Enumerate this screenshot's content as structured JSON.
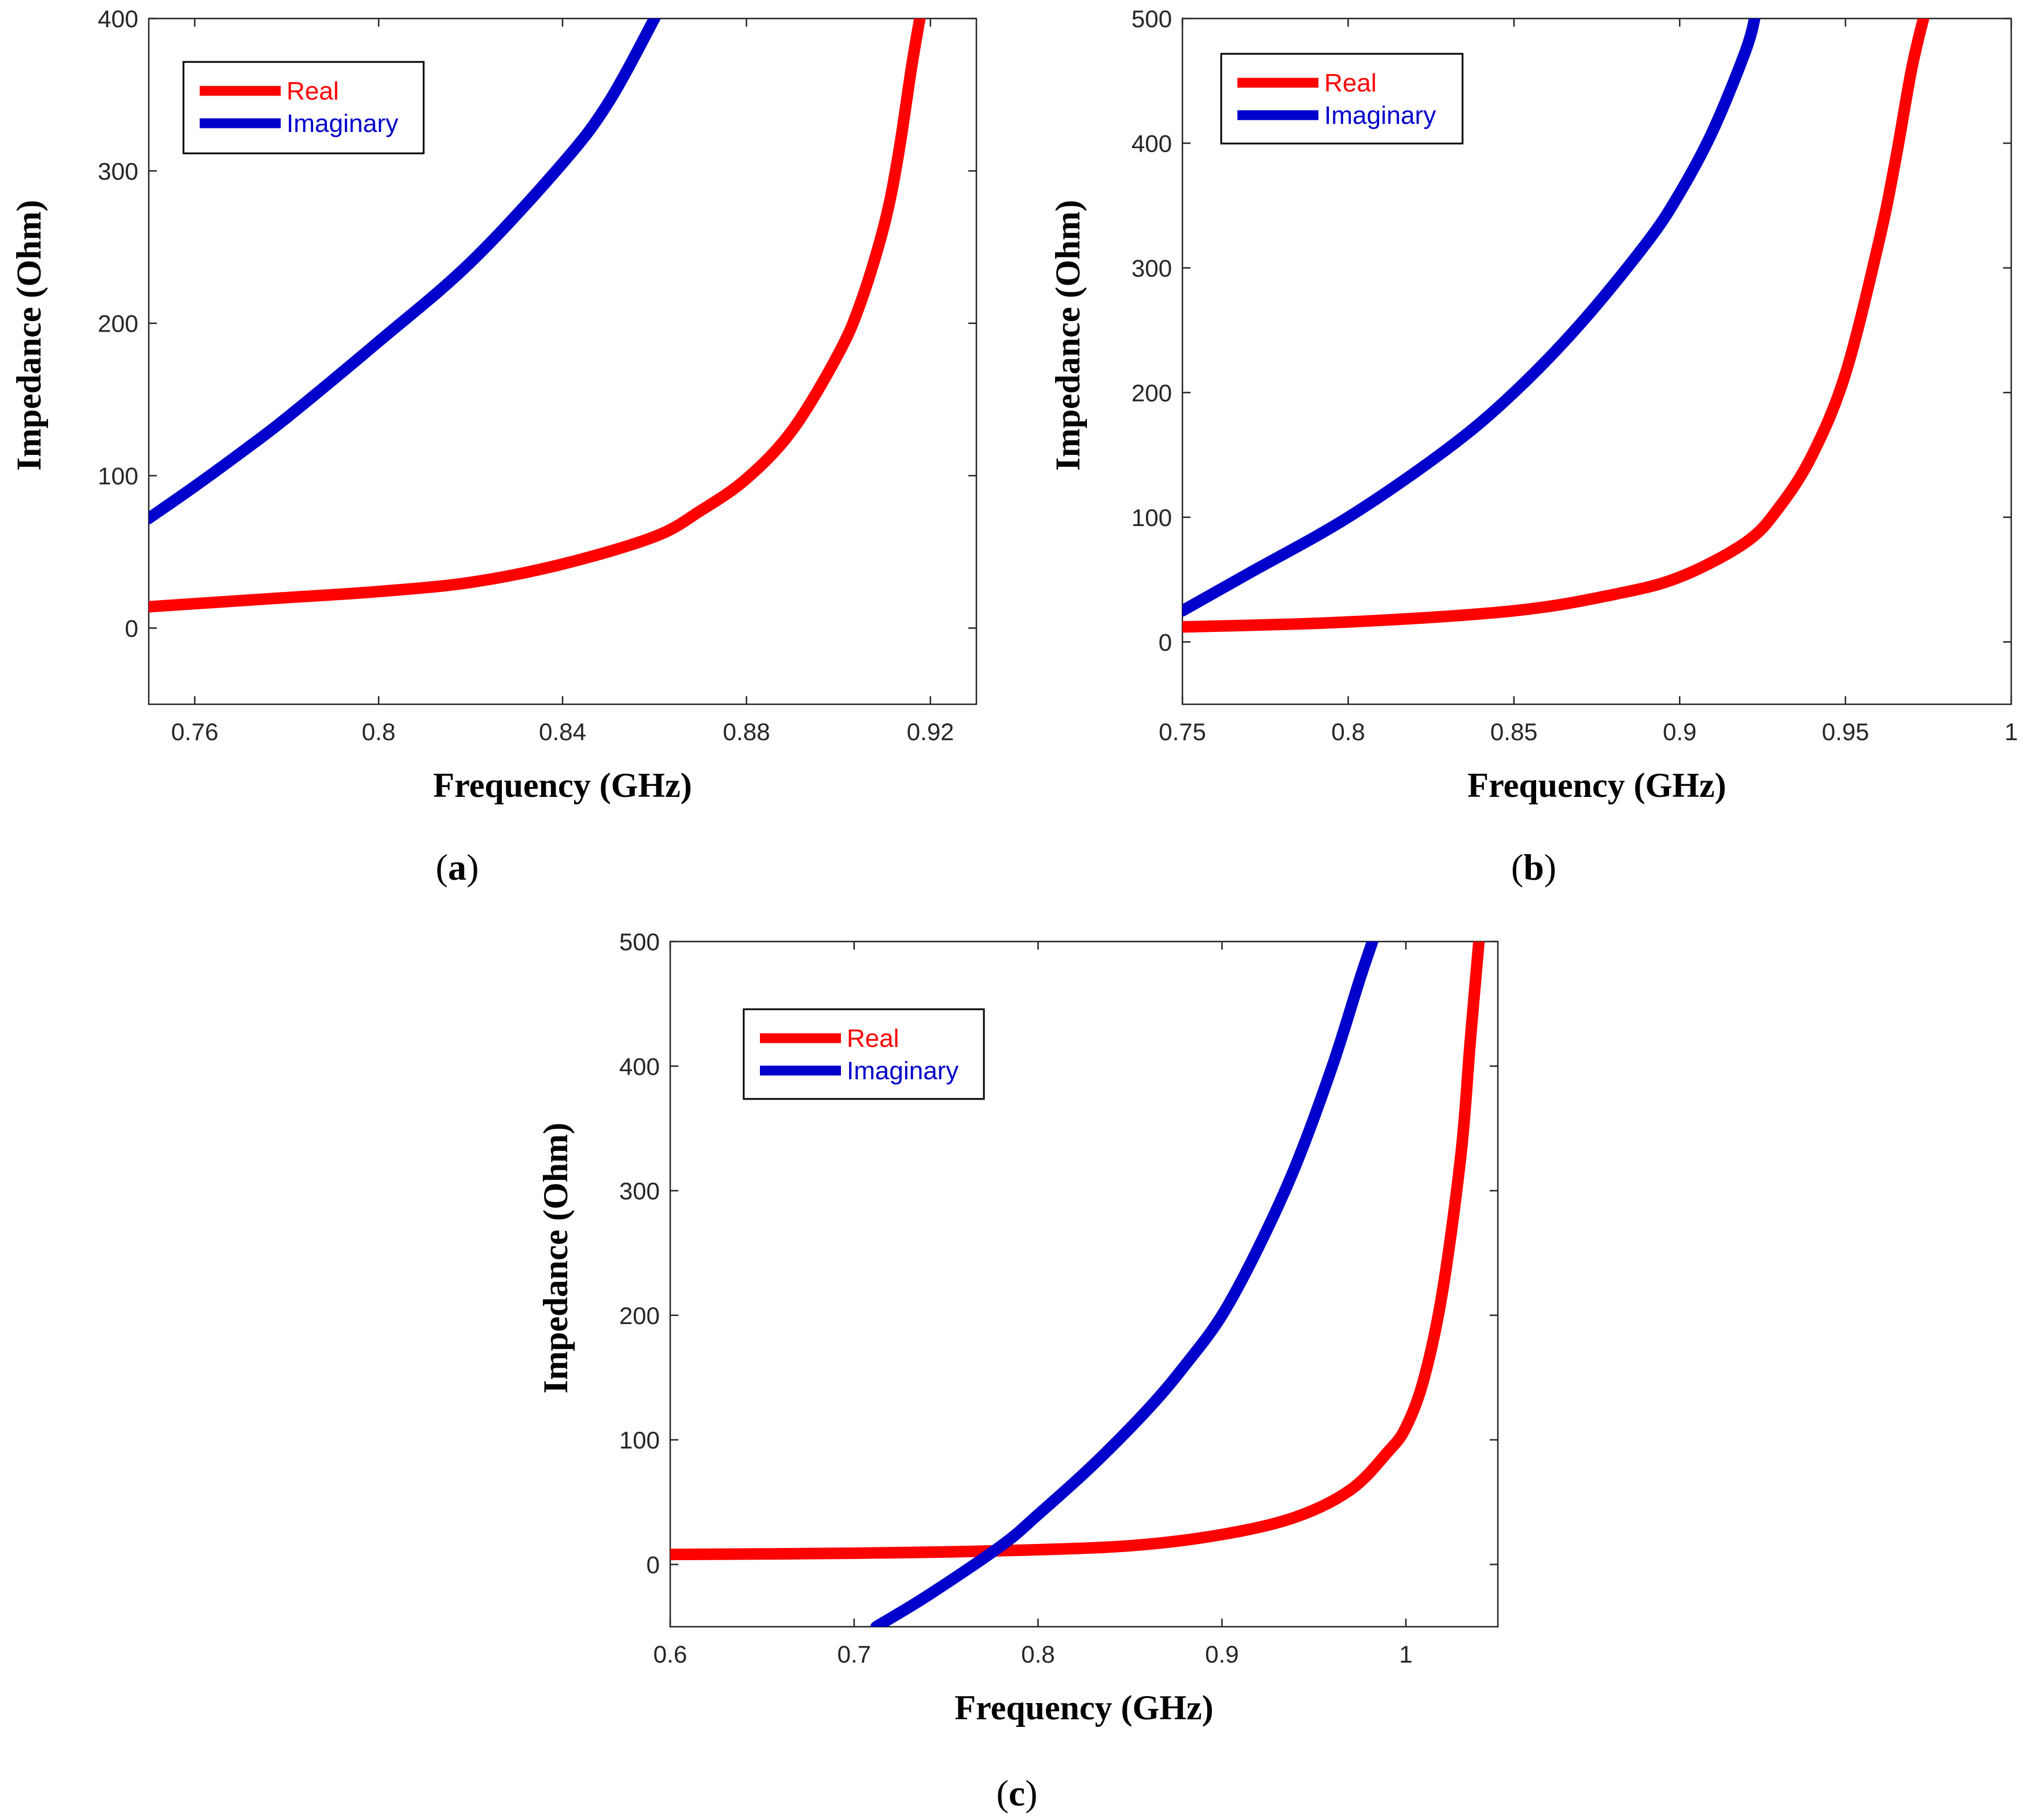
{
  "colors": {
    "real": "#ff0000",
    "imaginary": "#0000cc",
    "axis": "#262626",
    "grid": "#c8c8c8"
  },
  "chart_data": [
    {
      "type": "line",
      "caption": "a",
      "xlabel": "Frequency (GHz)",
      "ylabel": "Impedance (Ohm)",
      "xlim": [
        0.75,
        0.93
      ],
      "ylim": [
        -50,
        400
      ],
      "xticks": [
        0.76,
        0.8,
        0.84,
        0.88,
        0.92
      ],
      "xtick_labels": [
        "0.76",
        "0.8",
        "0.84",
        "0.88",
        "0.92"
      ],
      "yticks": [
        0,
        100,
        200,
        300,
        400
      ],
      "ytick_labels": [
        "0",
        "100",
        "200",
        "300",
        "400"
      ],
      "legend": "top-left",
      "series": [
        {
          "name": "Real",
          "color": "#ff0000",
          "x": [
            0.75,
            0.76,
            0.78,
            0.8,
            0.82,
            0.84,
            0.86,
            0.87,
            0.88,
            0.89,
            0.9,
            0.905,
            0.91,
            0.913,
            0.916,
            0.918
          ],
          "y": [
            14,
            16,
            20,
            24,
            30,
            42,
            60,
            77,
            98,
            130,
            180,
            215,
            265,
            310,
            370,
            405
          ]
        },
        {
          "name": "Imaginary",
          "color": "#0000cc",
          "x": [
            0.75,
            0.76,
            0.77,
            0.78,
            0.8,
            0.82,
            0.84,
            0.85,
            0.86
          ],
          "y": [
            72,
            93,
            115,
            138,
            188,
            240,
            305,
            345,
            400
          ]
        }
      ]
    },
    {
      "type": "line",
      "caption": "b",
      "xlabel": "Frequency (GHz)",
      "ylabel": "Impedance (Ohm)",
      "xlim": [
        0.75,
        1.0
      ],
      "ylim": [
        -50,
        500
      ],
      "xticks": [
        0.75,
        0.8,
        0.85,
        0.9,
        0.95,
        1.0
      ],
      "xtick_labels": [
        "0.75",
        "0.8",
        "0.85",
        "0.9",
        "0.95",
        "1"
      ],
      "yticks": [
        0,
        100,
        200,
        300,
        400,
        500
      ],
      "ytick_labels": [
        "0",
        "100",
        "200",
        "300",
        "400",
        "500"
      ],
      "legend": "top-left",
      "series": [
        {
          "name": "Real",
          "color": "#ff0000",
          "x": [
            0.75,
            0.8,
            0.85,
            0.88,
            0.9,
            0.92,
            0.93,
            0.94,
            0.95,
            0.96,
            0.965,
            0.97,
            0.974
          ],
          "y": [
            12,
            16,
            25,
            38,
            52,
            80,
            108,
            150,
            215,
            320,
            385,
            460,
            505
          ]
        },
        {
          "name": "Imaginary",
          "color": "#0000cc",
          "x": [
            0.75,
            0.77,
            0.8,
            0.83,
            0.85,
            0.87,
            0.89,
            0.9,
            0.91,
            0.92,
            0.923
          ],
          "y": [
            25,
            55,
            100,
            155,
            200,
            255,
            320,
            360,
            410,
            475,
            505
          ]
        }
      ]
    },
    {
      "type": "line",
      "caption": "c",
      "xlabel": "Frequency (GHz)",
      "ylabel": "Impedance (Ohm)",
      "xlim": [
        0.6,
        1.05
      ],
      "ylim": [
        -50,
        500
      ],
      "xticks": [
        0.6,
        0.7,
        0.8,
        0.9,
        1.0
      ],
      "xtick_labels": [
        "0.6",
        "0.7",
        "0.8",
        "0.9",
        "1"
      ],
      "yticks": [
        0,
        100,
        200,
        300,
        400,
        500
      ],
      "ytick_labels": [
        "0",
        "100",
        "200",
        "300",
        "400",
        "500"
      ],
      "legend": "top-left",
      "series": [
        {
          "name": "Real",
          "color": "#ff0000",
          "x": [
            0.6,
            0.7,
            0.78,
            0.85,
            0.9,
            0.94,
            0.97,
            0.99,
            1.0,
            1.01,
            1.02,
            1.03,
            1.035,
            1.04
          ],
          "y": [
            8,
            9,
            11,
            15,
            24,
            38,
            60,
            90,
            110,
            150,
            220,
            330,
            420,
            505
          ]
        },
        {
          "name": "Imaginary",
          "color": "#0000cc",
          "x": [
            0.712,
            0.74,
            0.78,
            0.8,
            0.83,
            0.86,
            0.88,
            0.9,
            0.92,
            0.94,
            0.96,
            0.975,
            0.983
          ],
          "y": [
            -50,
            -25,
            15,
            40,
            80,
            125,
            160,
            200,
            255,
            320,
            400,
            470,
            505
          ]
        }
      ]
    }
  ]
}
